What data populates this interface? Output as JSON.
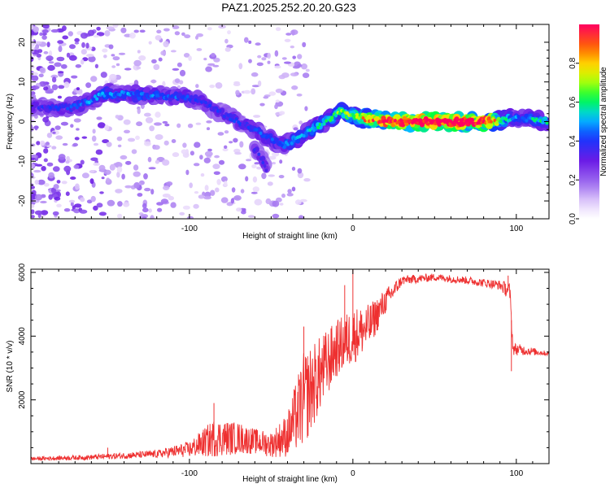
{
  "title": "PAZ1.2025.252.20.20.G23",
  "chart_data": [
    {
      "type": "heatmap",
      "title": "PAZ1.2025.252.20.20.G23",
      "xlabel": "Height of straight line (km)",
      "ylabel": "Frequency (Hz)",
      "xlim": [
        -197,
        120
      ],
      "ylim": [
        -24.5,
        24.5
      ],
      "xticks": [
        -100,
        0,
        100
      ],
      "yticks": [
        -20,
        -10,
        0,
        10,
        20
      ],
      "colorbar": {
        "label": "Normalized spectral amplitude",
        "range": [
          0,
          1
        ],
        "ticks": [
          "0.0",
          "0.2",
          "0.4",
          "0.6",
          "0.8"
        ]
      },
      "ridge": [
        {
          "x": -197,
          "y": 4.0,
          "a": 0.3
        },
        {
          "x": -185,
          "y": 3.5,
          "a": 0.32
        },
        {
          "x": -170,
          "y": 3.8,
          "a": 0.35
        },
        {
          "x": -160,
          "y": 5.5,
          "a": 0.4
        },
        {
          "x": -152,
          "y": 7.0,
          "a": 0.42
        },
        {
          "x": -140,
          "y": 7.0,
          "a": 0.4
        },
        {
          "x": -120,
          "y": 6.5,
          "a": 0.38
        },
        {
          "x": -100,
          "y": 6.0,
          "a": 0.35
        },
        {
          "x": -90,
          "y": 4.5,
          "a": 0.33
        },
        {
          "x": -80,
          "y": 2.0,
          "a": 0.32
        },
        {
          "x": -70,
          "y": 0.0,
          "a": 0.33
        },
        {
          "x": -60,
          "y": -2.0,
          "a": 0.35
        },
        {
          "x": -48,
          "y": -5.0,
          "a": 0.38
        },
        {
          "x": -42,
          "y": -6.0,
          "a": 0.4
        },
        {
          "x": -35,
          "y": -4.5,
          "a": 0.42
        },
        {
          "x": -25,
          "y": -2.0,
          "a": 0.45
        },
        {
          "x": -15,
          "y": 0.5,
          "a": 0.5
        },
        {
          "x": -8,
          "y": 2.5,
          "a": 0.55
        },
        {
          "x": 0,
          "y": 1.5,
          "a": 0.6
        },
        {
          "x": 10,
          "y": 0.5,
          "a": 0.75
        },
        {
          "x": 20,
          "y": 0.0,
          "a": 0.85
        },
        {
          "x": 40,
          "y": 0.0,
          "a": 0.92
        },
        {
          "x": 60,
          "y": 0.0,
          "a": 0.95
        },
        {
          "x": 80,
          "y": 0.0,
          "a": 0.9
        },
        {
          "x": 95,
          "y": 0.5,
          "a": 0.45
        },
        {
          "x": 100,
          "y": 1.0,
          "a": 0.4
        },
        {
          "x": 110,
          "y": 0.5,
          "a": 0.45
        },
        {
          "x": 120,
          "y": 0.0,
          "a": 0.5
        }
      ],
      "branch": [
        {
          "x": -60,
          "y": -7.0,
          "a": 0.3
        },
        {
          "x": -55,
          "y": -10.0,
          "a": 0.32
        },
        {
          "x": -52,
          "y": -13.0,
          "a": 0.3
        }
      ]
    },
    {
      "type": "line",
      "xlabel": "Height of straight line (km)",
      "ylabel": "SNR (10 * v/v)",
      "xlim": [
        -197,
        120
      ],
      "ylim": [
        0,
        6100
      ],
      "xticks": [
        -100,
        0,
        100
      ],
      "yticks": [
        2000,
        4000,
        6000
      ],
      "color": "#ee3030",
      "envelope": [
        {
          "x": -197,
          "y": 150,
          "amp": 60
        },
        {
          "x": -160,
          "y": 200,
          "amp": 80
        },
        {
          "x": -140,
          "y": 250,
          "amp": 100
        },
        {
          "x": -120,
          "y": 300,
          "amp": 120
        },
        {
          "x": -100,
          "y": 450,
          "amp": 250
        },
        {
          "x": -85,
          "y": 800,
          "amp": 600
        },
        {
          "x": -70,
          "y": 800,
          "amp": 500
        },
        {
          "x": -60,
          "y": 700,
          "amp": 400
        },
        {
          "x": -50,
          "y": 600,
          "amp": 400
        },
        {
          "x": -40,
          "y": 900,
          "amp": 700
        },
        {
          "x": -30,
          "y": 2000,
          "amp": 1500
        },
        {
          "x": -20,
          "y": 2800,
          "amp": 1200
        },
        {
          "x": -10,
          "y": 3600,
          "amp": 900
        },
        {
          "x": 0,
          "y": 4000,
          "amp": 900
        },
        {
          "x": 10,
          "y": 4300,
          "amp": 700
        },
        {
          "x": 20,
          "y": 5100,
          "amp": 400
        },
        {
          "x": 30,
          "y": 5750,
          "amp": 150
        },
        {
          "x": 50,
          "y": 5850,
          "amp": 120
        },
        {
          "x": 70,
          "y": 5750,
          "amp": 120
        },
        {
          "x": 90,
          "y": 5600,
          "amp": 150
        },
        {
          "x": 96,
          "y": 5400,
          "amp": 300
        },
        {
          "x": 98,
          "y": 3600,
          "amp": 200
        },
        {
          "x": 120,
          "y": 3450,
          "amp": 60
        }
      ],
      "spikes": [
        {
          "x": 0,
          "y": 6100
        },
        {
          "x": -5,
          "y": 5600
        },
        {
          "x": 97,
          "y": 2900
        },
        {
          "x": -30,
          "y": 4300
        },
        {
          "x": 95,
          "y": 5900
        },
        {
          "x": -150,
          "y": 500
        },
        {
          "x": -85,
          "y": 1900
        }
      ]
    }
  ]
}
